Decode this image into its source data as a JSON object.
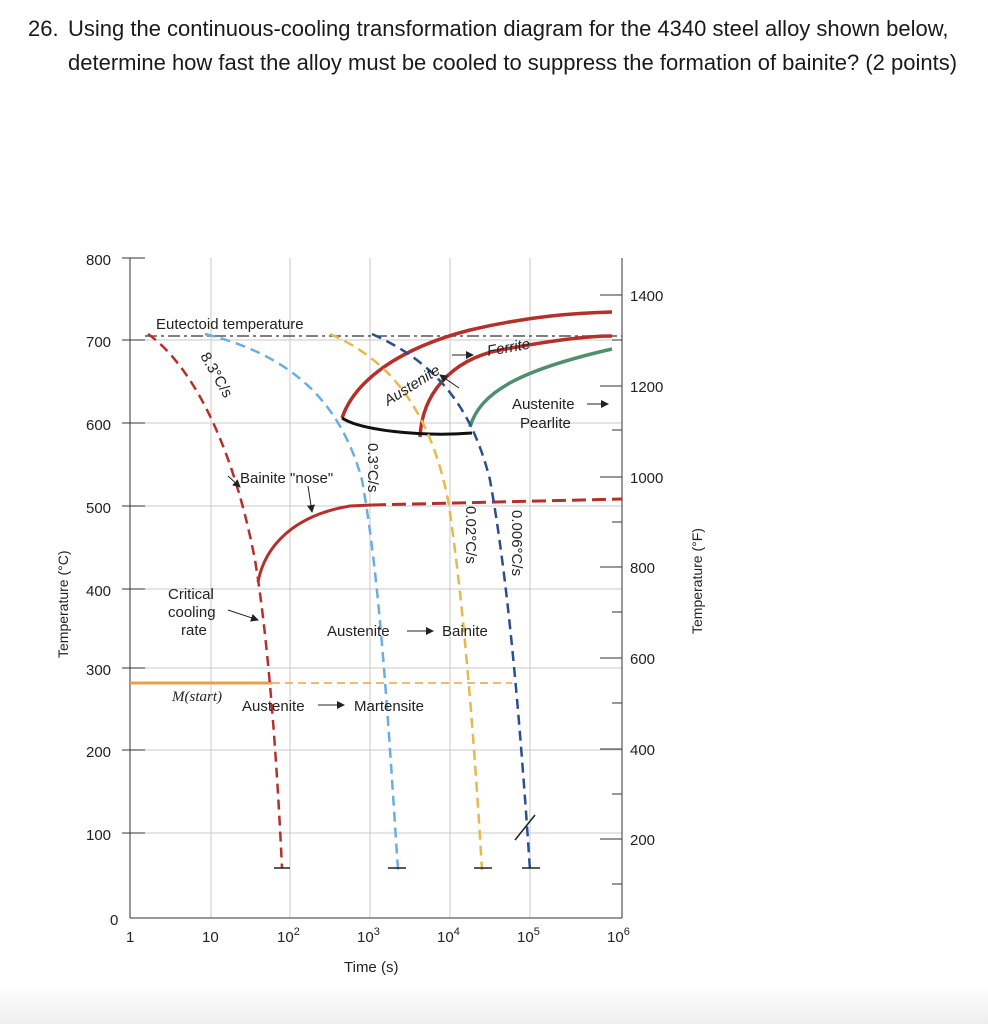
{
  "question": {
    "number": "26.",
    "text": "Using the continuous-cooling transformation diagram for the 4340 steel alloy shown below, determine how fast the alloy must be cooled to suppress the formation of bainite? (2 points)"
  },
  "diagram": {
    "y_left_label": "Temperature (°C)",
    "y_right_label": "Temperature (°F)",
    "x_label": "Time (s)",
    "y_left_ticks": [
      "800",
      "700",
      "600",
      "500",
      "400",
      "300",
      "200",
      "100",
      "0"
    ],
    "y_right_ticks": [
      "1400",
      "1200",
      "1000",
      "800",
      "600",
      "400",
      "200"
    ],
    "x_ticks": [
      {
        "base": "1",
        "exp": ""
      },
      {
        "base": "10",
        "exp": ""
      },
      {
        "base": "10",
        "exp": "2"
      },
      {
        "base": "10",
        "exp": "3"
      },
      {
        "base": "10",
        "exp": "4"
      },
      {
        "base": "10",
        "exp": "5"
      },
      {
        "base": "10",
        "exp": "6"
      }
    ],
    "labels": {
      "eutectoid": "Eutectoid temperature",
      "rate_83": "8.3°C/s",
      "rate_03": "0.3°C/s",
      "rate_002": "0.02°C/s",
      "rate_0006": "0.006°C/s",
      "bainite_nose": "Bainite \"nose\"",
      "austenite_ferrite_a": "Austenite",
      "austenite_ferrite_b": "Ferrite",
      "austenite_pearlite_a": "Austenite",
      "austenite_pearlite_b": "Pearlite",
      "critical_1": "Critical",
      "critical_2": "cooling",
      "critical_3": "rate",
      "austenite_bainite": "Austenite",
      "bainite": "Bainite",
      "mstart": "M(start)",
      "austenite_martensite": "Austenite",
      "martensite": "Martensite"
    },
    "colors": {
      "red": "#b5302a",
      "light_blue": "#6aaee0",
      "yellow": "#e8b84a",
      "dark_blue": "#2a4f8f",
      "green": "#4e8f6e",
      "orange": "#e9a04a",
      "black": "#111111",
      "grid": "#bfbfbf"
    }
  }
}
